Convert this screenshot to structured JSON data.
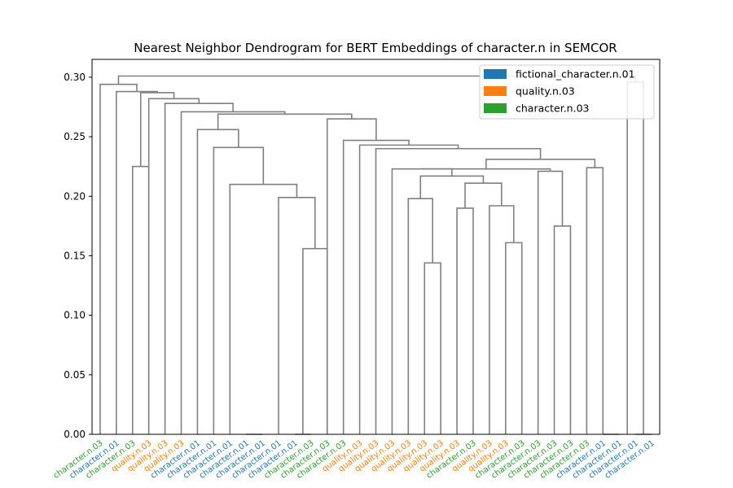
{
  "chart_data": {
    "type": "dendrogram",
    "title": "Nearest Neighbor Dendrogram for BERT Embeddings of character.n in SEMCOR",
    "ylim": [
      0,
      0.315
    ],
    "yticks": [
      "0.00",
      "0.05",
      "0.10",
      "0.15",
      "0.20",
      "0.25",
      "0.30"
    ],
    "ytick_values": [
      0,
      0.05,
      0.1,
      0.15,
      0.2,
      0.25,
      0.3
    ],
    "legend_position": "top-right",
    "legend": [
      {
        "label": "fictional_character.n.01",
        "color": "#1f77b4"
      },
      {
        "label": "quality.n.03",
        "color": "#ff7f0e"
      },
      {
        "label": "character.n.03",
        "color": "#2ca02c"
      }
    ],
    "link_color": "#808080",
    "leaves": [
      {
        "label": "character.n.03",
        "sense": 2
      },
      {
        "label": "character.n.01",
        "sense": 0
      },
      {
        "label": "character.n.03",
        "sense": 2
      },
      {
        "label": "quality.n.03",
        "sense": 1
      },
      {
        "label": "quality.n.03",
        "sense": 1
      },
      {
        "label": "quality.n.03",
        "sense": 1
      },
      {
        "label": "character.n.01",
        "sense": 0
      },
      {
        "label": "character.n.01",
        "sense": 0
      },
      {
        "label": "character.n.01",
        "sense": 0
      },
      {
        "label": "character.n.01",
        "sense": 0
      },
      {
        "label": "character.n.01",
        "sense": 0
      },
      {
        "label": "character.n.01",
        "sense": 0
      },
      {
        "label": "character.n.01",
        "sense": 0
      },
      {
        "label": "character.n.03",
        "sense": 2
      },
      {
        "label": "character.n.03",
        "sense": 2
      },
      {
        "label": "character.n.03",
        "sense": 2
      },
      {
        "label": "quality.n.03",
        "sense": 1
      },
      {
        "label": "quality.n.03",
        "sense": 1
      },
      {
        "label": "quality.n.03",
        "sense": 1
      },
      {
        "label": "quality.n.03",
        "sense": 1
      },
      {
        "label": "quality.n.03",
        "sense": 1
      },
      {
        "label": "quality.n.03",
        "sense": 1
      },
      {
        "label": "quality.n.03",
        "sense": 1
      },
      {
        "label": "character.n.03",
        "sense": 2
      },
      {
        "label": "quality.n.03",
        "sense": 1
      },
      {
        "label": "quality.n.03",
        "sense": 1
      },
      {
        "label": "character.n.03",
        "sense": 2
      },
      {
        "label": "character.n.03",
        "sense": 2
      },
      {
        "label": "character.n.03",
        "sense": 2
      },
      {
        "label": "character.n.03",
        "sense": 2
      },
      {
        "label": "character.n.03",
        "sense": 2
      },
      {
        "label": "character.n.01",
        "sense": 0
      },
      {
        "label": "character.n.01",
        "sense": 0
      },
      {
        "label": "character.n.01",
        "sense": 0
      },
      {
        "label": "character.n.01",
        "sense": 0
      }
    ],
    "links": [
      {
        "left": 9,
        "right": 10,
        "height": 0.0
      },
      {
        "left": 12,
        "right": 13,
        "height": 0.0
      },
      {
        "left": 31,
        "right": 32,
        "height": 0.0
      },
      {
        "left": 33,
        "right": 34,
        "height": 0.0
      },
      {
        "left": 20,
        "right": 21,
        "height": 0.144
      },
      {
        "left": 12.5,
        "right": 14,
        "height": 0.156
      },
      {
        "left": 25,
        "right": 26,
        "height": 0.161
      },
      {
        "left": 28,
        "right": 29,
        "height": 0.175
      },
      {
        "left": 22,
        "right": 23,
        "height": 0.19
      },
      {
        "left": 24,
        "right": 25.5,
        "height": 0.192
      },
      {
        "left": 19,
        "right": 20.5,
        "height": 0.198
      },
      {
        "left": 11,
        "right": 13.25,
        "height": 0.199
      },
      {
        "left": 8,
        "right": 12.125,
        "height": 0.21
      },
      {
        "left": 22.5,
        "right": 24.75,
        "height": 0.211
      },
      {
        "left": 19.75,
        "right": 23.625,
        "height": 0.217
      },
      {
        "left": 27,
        "right": 28.5,
        "height": 0.221
      },
      {
        "left": 30,
        "right": 31,
        "height": 0.224
      },
      {
        "left": 2,
        "right": 3,
        "height": 0.225
      },
      {
        "left": 18,
        "right": 21.6875,
        "height": 0.223
      },
      {
        "left": 19.84375,
        "right": 27.75,
        "height": 0.223
      },
      {
        "left": 7,
        "right": 10.0625,
        "height": 0.241
      },
      {
        "left": 6,
        "right": 8.53125,
        "height": 0.256
      },
      {
        "left": 23.796875,
        "right": 30.5,
        "height": 0.231
      },
      {
        "left": 17,
        "right": 27.1484375,
        "height": 0.24
      },
      {
        "left": 16,
        "right": 22.07421875,
        "height": 0.243
      },
      {
        "left": 15,
        "right": 19.037109375,
        "height": 0.247
      },
      {
        "left": 14,
        "right": 17.0185546875,
        "height": 0.265
      },
      {
        "left": 7.265625,
        "right": 15.50927734375,
        "height": 0.269
      },
      {
        "left": 5,
        "right": 11.387451171875,
        "height": 0.271
      },
      {
        "left": 4,
        "right": 8.1937255859375,
        "height": 0.278
      },
      {
        "left": 32.5,
        "right": 33.5,
        "height": 0.296
      },
      {
        "left": 3,
        "right": 6.09686279296875,
        "height": 0.282
      },
      {
        "left": 2.5,
        "right": 4.548431396484375,
        "height": 0.287
      },
      {
        "left": 1,
        "right": 3.5242156982421875,
        "height": 0.288
      },
      {
        "left": 0,
        "right": 2.2621078491210938,
        "height": 0.294
      },
      {
        "left": 1.1310539245605469,
        "right": 33,
        "height": 0.301
      }
    ]
  }
}
